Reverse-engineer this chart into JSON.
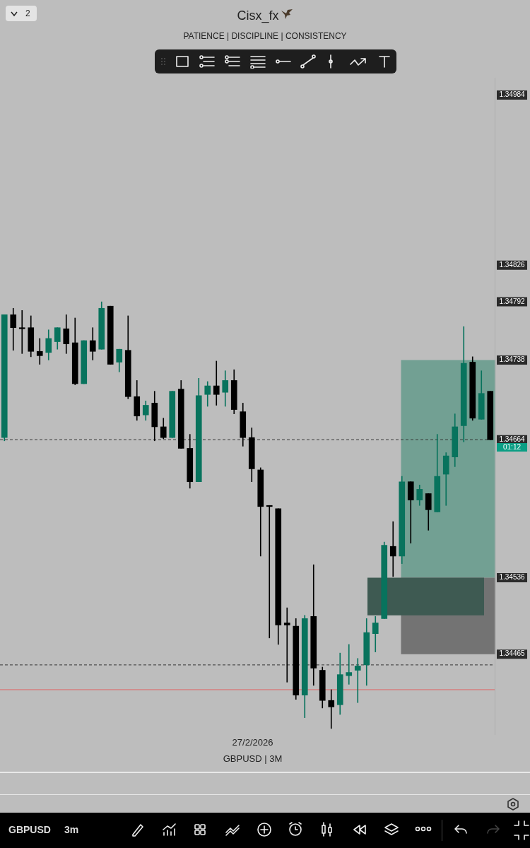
{
  "chart_data": {
    "type": "candlestick",
    "title": "Cisx_fx",
    "subtitle": "PATIENCE |  DISCIPLINE |  CONSISTENCY",
    "categories": [
      null,
      null,
      null,
      null,
      null,
      null,
      null,
      null,
      null,
      null,
      null,
      null,
      null,
      null,
      null,
      null,
      null,
      null,
      null,
      null,
      null,
      null,
      null,
      null,
      null,
      null,
      null,
      null,
      null,
      null,
      null,
      null,
      null,
      null,
      null,
      null,
      null,
      null,
      null,
      null,
      null,
      null,
      null,
      null,
      null,
      null,
      null,
      null,
      null,
      null,
      null,
      null,
      null,
      null,
      null,
      null
    ],
    "ohlc": [
      [
        1.34666,
        1.3478,
        1.34663,
        1.3478
      ],
      [
        1.3478,
        1.34786,
        1.34747,
        1.34768
      ],
      [
        1.34768,
        1.34784,
        1.34744,
        1.34767
      ],
      [
        1.34768,
        1.34779,
        1.34741,
        1.34746
      ],
      [
        1.34746,
        1.34758,
        1.34734,
        1.34742
      ],
      [
        1.34745,
        1.34766,
        1.34738,
        1.34758
      ],
      [
        1.34755,
        1.34768,
        1.34748,
        1.34768
      ],
      [
        1.34767,
        1.3478,
        1.34744,
        1.34753
      ],
      [
        1.34754,
        1.34777,
        1.34715,
        1.34716
      ],
      [
        1.34716,
        1.34756,
        1.34716,
        1.34756
      ],
      [
        1.34756,
        1.34768,
        1.34738,
        1.34746
      ],
      [
        1.34748,
        1.34792,
        1.34748,
        1.34786
      ],
      [
        1.34788,
        1.34788,
        1.34734,
        1.34734
      ],
      [
        1.34736,
        1.34748,
        1.34727,
        1.34748
      ],
      [
        1.34747,
        1.34779,
        1.34702,
        1.34704
      ],
      [
        1.34704,
        1.34719,
        1.34682,
        1.34686
      ],
      [
        1.34687,
        1.347,
        1.34682,
        1.34696
      ],
      [
        1.34698,
        1.34709,
        1.34663,
        1.34676
      ],
      [
        1.34676,
        1.34684,
        1.34665,
        1.34666
      ],
      [
        1.34666,
        1.34709,
        1.34666,
        1.34709
      ],
      [
        1.34711,
        1.34719,
        1.34656,
        1.34656
      ],
      [
        1.34656,
        1.34669,
        1.34619,
        1.34625
      ],
      [
        1.34625,
        1.34721,
        1.34625,
        1.34705
      ],
      [
        1.34706,
        1.34718,
        1.34695,
        1.34714
      ],
      [
        1.34714,
        1.34737,
        1.34696,
        1.34706
      ],
      [
        1.34708,
        1.34728,
        1.34695,
        1.34719
      ],
      [
        1.34719,
        1.34729,
        1.34688,
        1.34692
      ],
      [
        1.3469,
        1.34698,
        1.34658,
        1.34666
      ],
      [
        1.34666,
        1.34675,
        1.34625,
        1.34637
      ],
      [
        1.34636,
        1.34638,
        1.34556,
        1.34602
      ],
      [
        1.34603,
        1.34603,
        1.3448,
        1.34602
      ],
      [
        1.346,
        1.346,
        1.34474,
        1.34492
      ],
      [
        1.34494,
        1.34508,
        1.34439,
        1.34492
      ],
      [
        1.34491,
        1.34498,
        1.34423,
        1.34427
      ],
      [
        1.34427,
        1.34501,
        1.34406,
        1.34498
      ],
      [
        1.345,
        1.34548,
        1.34436,
        1.34452
      ],
      [
        1.3445,
        1.34453,
        1.34415,
        1.34422
      ],
      [
        1.34422,
        1.34432,
        1.34396,
        1.34416
      ],
      [
        1.34418,
        1.34466,
        1.34409,
        1.34446
      ],
      [
        1.34445,
        1.34474,
        1.34437,
        1.34448
      ],
      [
        1.3445,
        1.34461,
        1.3442,
        1.34454
      ],
      [
        1.34455,
        1.34498,
        1.34436,
        1.34485
      ],
      [
        1.34484,
        1.345,
        1.34467,
        1.34494
      ],
      [
        1.34498,
        1.34569,
        1.34498,
        1.34566
      ],
      [
        1.34565,
        1.34588,
        1.34537,
        1.34556
      ],
      [
        1.34556,
        1.3463,
        1.34549,
        1.34625
      ],
      [
        1.34625,
        1.34625,
        1.34568,
        1.34608
      ],
      [
        1.34608,
        1.34622,
        1.34603,
        1.34618
      ],
      [
        1.34614,
        1.34614,
        1.3458,
        1.34599
      ],
      [
        1.34597,
        1.34669,
        1.34597,
        1.3463
      ],
      [
        1.34632,
        1.34652,
        1.34603,
        1.34649
      ],
      [
        1.34648,
        1.34688,
        1.34639,
        1.34676
      ],
      [
        1.34677,
        1.34769,
        1.34662,
        1.34735
      ],
      [
        1.34736,
        1.34741,
        1.34682,
        1.34684
      ],
      [
        1.34683,
        1.34728,
        1.34683,
        1.34707
      ],
      [
        1.34709,
        1.34709,
        1.34664,
        1.34664
      ]
    ],
    "colors": [
      "#08735d",
      "#000000",
      "#000000",
      "#000000",
      "#000000",
      "#08735d",
      "#08735d",
      "#000000",
      "#000000",
      "#08735d",
      "#000000",
      "#08735d",
      "#000000",
      "#08735d",
      "#000000",
      "#000000",
      "#08735d",
      "#000000",
      "#000000",
      "#08735d",
      "#000000",
      "#000000",
      "#08735d",
      "#08735d",
      "#000000",
      "#08735d",
      "#000000",
      "#000000",
      "#000000",
      "#000000",
      "#000000",
      "#000000",
      "#000000",
      "#000000",
      "#08735d",
      "#000000",
      "#000000",
      "#000000",
      "#08735d",
      "#08735d",
      "#08735d",
      "#08735d",
      "#08735d",
      "#08735d",
      "#000000",
      "#08735d",
      "#000000",
      "#08735d",
      "#000000",
      "#08735d",
      "#08735d",
      "#08735d",
      "#08735d",
      "#000000",
      "#08735d",
      "#000000"
    ],
    "ylim": [
      1.3439,
      1.35
    ],
    "yticks": [
      1.34984,
      1.34826,
      1.34792,
      1.34738,
      1.34664,
      1.34536,
      1.34465
    ],
    "ref_lines": [
      {
        "axis": "y",
        "value": 1.34664,
        "color": "#333333",
        "line_style": "dashed"
      },
      {
        "axis": "y",
        "value": 1.34455,
        "color": "#333333",
        "line_style": "dashed"
      },
      {
        "axis": "y",
        "value": 1.34432,
        "color": "#e06666",
        "line_style": "solid"
      }
    ],
    "bands": [
      {
        "axis": "y",
        "from": 1.34536,
        "to": 1.34738,
        "color": "#72a093"
      },
      {
        "axis": "y",
        "from": 1.34465,
        "to": 1.34536,
        "color": "#737373"
      },
      {
        "axis": "y",
        "from": 1.34501,
        "to": 1.34536,
        "color": "#3e5a52"
      }
    ],
    "annotations": [
      "2",
      "01:12",
      "27/2/2026",
      "GBPUSD | 3M",
      "GBPUSD",
      "3m"
    ]
  }
}
